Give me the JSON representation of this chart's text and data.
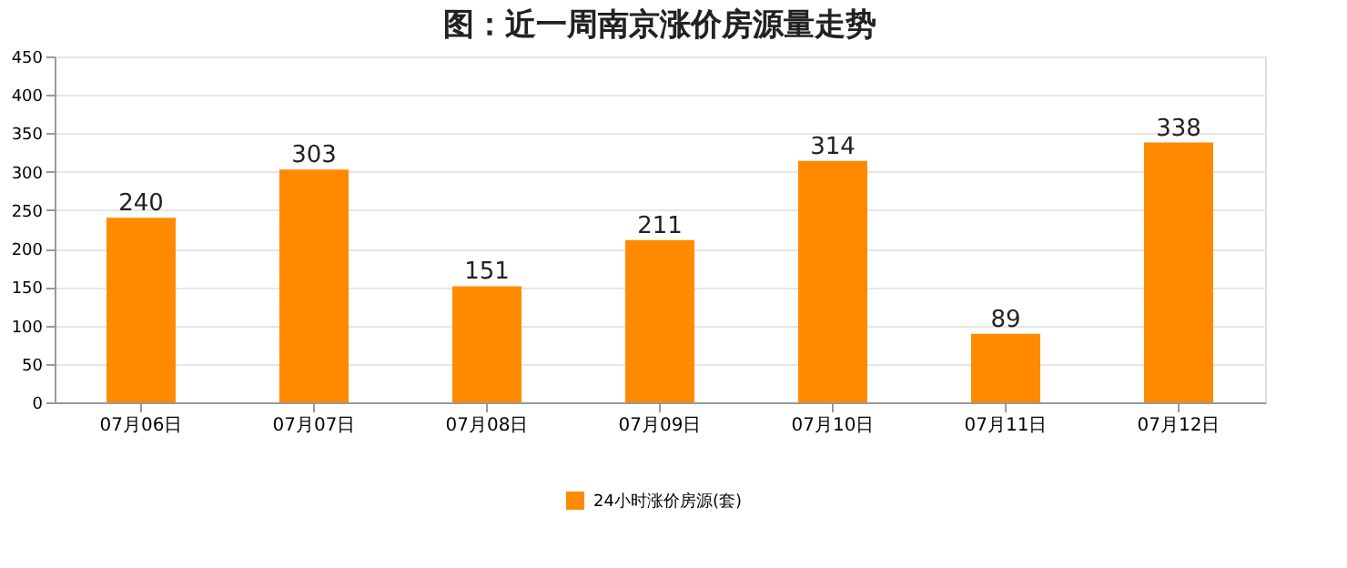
{
  "chart_data": {
    "type": "bar",
    "title": "图：近一周南京涨价房源量走势",
    "categories": [
      "07月06日",
      "07月07日",
      "07月08日",
      "07月09日",
      "07月10日",
      "07月11日",
      "07月12日"
    ],
    "series": [
      {
        "name": "24小时涨价房源(套)",
        "color": "#ff8a00",
        "values": [
          240,
          303,
          151,
          211,
          314,
          89,
          338
        ]
      }
    ],
    "ylim": [
      0,
      450
    ],
    "yticks": [
      0,
      50,
      100,
      150,
      200,
      250,
      300,
      350,
      400,
      450
    ],
    "grid": "y",
    "legend": "bottom",
    "data_labels": true
  }
}
